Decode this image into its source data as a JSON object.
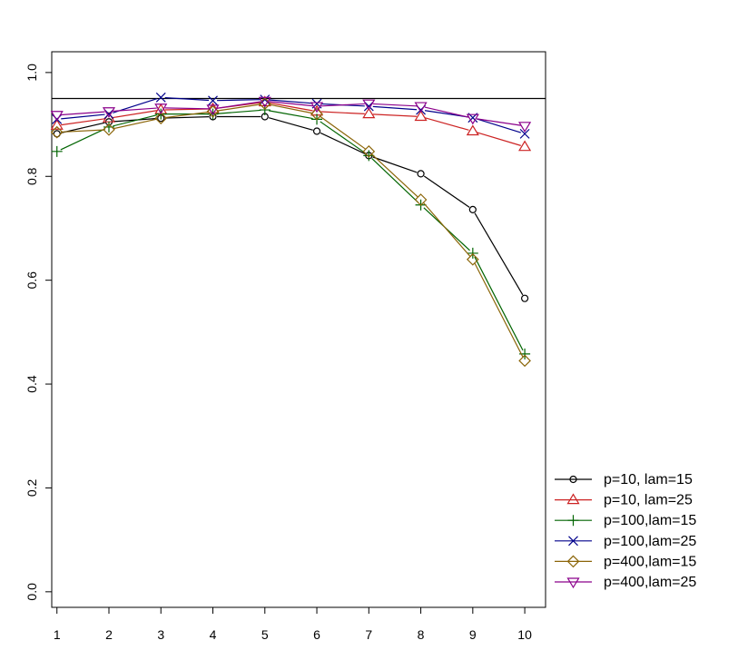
{
  "chart_data": {
    "type": "line",
    "title": "",
    "xlabel": "",
    "ylabel": "",
    "x": [
      1,
      2,
      3,
      4,
      5,
      6,
      7,
      8,
      9,
      10
    ],
    "xlim": [
      0.9,
      10.4
    ],
    "ylim": [
      -0.03,
      1.04
    ],
    "x_ticks": [
      "1",
      "2",
      "3",
      "4",
      "5",
      "6",
      "7",
      "8",
      "9",
      "10"
    ],
    "y_ticks": [
      "0.0",
      "0.2",
      "0.4",
      "0.6",
      "0.8",
      "1.0"
    ],
    "reference_line": 0.95,
    "grid": false,
    "legend_position": "bottom-right-outside",
    "series": [
      {
        "name": "p=10,  lam=15",
        "color": "#000000",
        "marker": "circle",
        "values": [
          0.882,
          0.905,
          0.912,
          0.915,
          0.915,
          0.887,
          0.84,
          0.805,
          0.736,
          0.565
        ]
      },
      {
        "name": "p=10,  lam=25",
        "color": "#cc2222",
        "marker": "triangle-up",
        "values": [
          0.898,
          0.912,
          0.928,
          0.93,
          0.943,
          0.925,
          0.92,
          0.915,
          0.887,
          0.857
        ]
      },
      {
        "name": "p=100,lam=15",
        "color": "#006400",
        "marker": "plus",
        "values": [
          0.848,
          0.895,
          0.92,
          0.92,
          0.928,
          0.91,
          0.84,
          0.745,
          0.652,
          0.458
        ]
      },
      {
        "name": "p=100,lam=25",
        "color": "#00008b",
        "marker": "x",
        "values": [
          0.91,
          0.92,
          0.952,
          0.946,
          0.948,
          0.94,
          0.935,
          0.928,
          0.913,
          0.882
        ]
      },
      {
        "name": "p=400,lam=15",
        "color": "#8b6508",
        "marker": "diamond",
        "values": [
          0.885,
          0.89,
          0.912,
          0.925,
          0.94,
          0.92,
          0.848,
          0.755,
          0.64,
          0.445
        ]
      },
      {
        "name": "p=400,lam=25",
        "color": "#8b008b",
        "marker": "triangle-down",
        "values": [
          0.918,
          0.925,
          0.932,
          0.93,
          0.945,
          0.935,
          0.94,
          0.935,
          0.912,
          0.897
        ]
      }
    ]
  }
}
